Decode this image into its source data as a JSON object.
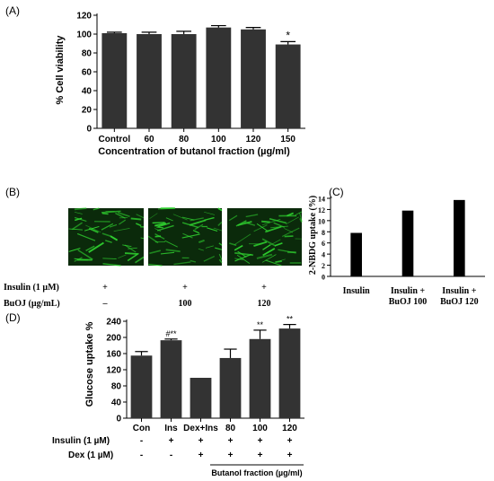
{
  "panels": {
    "a": "(A)",
    "b": "(B)",
    "c": "(C)",
    "d": "(D)"
  },
  "colors": {
    "bar": "#333333",
    "bar_black": "#000000",
    "axis": "#000000",
    "micro_bg": "#0b2a0b",
    "micro_fg": "#2fd12f"
  },
  "chart_data": [
    {
      "type": "bar",
      "panel": "A",
      "categories": [
        "Control",
        "60",
        "80",
        "100",
        "120",
        "150"
      ],
      "values": [
        101,
        100,
        100,
        107,
        105,
        89
      ],
      "errors": [
        1,
        2,
        3,
        2,
        2,
        3
      ],
      "annotations": [
        "",
        "",
        "",
        "",
        "",
        "*"
      ],
      "ylabel": "% Cell viability",
      "xlabel": "Concentration of butanol fraction (µg/ml)",
      "ylim": [
        0,
        120
      ],
      "yticks": [
        0,
        20,
        40,
        60,
        80,
        100,
        120
      ]
    },
    {
      "type": "bar",
      "panel": "C",
      "categories": [
        "Insulin",
        "Insulin + BuOJ 100",
        "Insulin + BuOJ 120"
      ],
      "category_lines": [
        [
          "Insulin"
        ],
        [
          "Insulin +",
          "BuOJ 100"
        ],
        [
          "Insulin +",
          "BuOJ 120"
        ]
      ],
      "values": [
        7.8,
        11.8,
        13.7
      ],
      "ylabel": "2-NBDG uptake (%)",
      "ylim": [
        0,
        14
      ],
      "yticks": [
        0,
        2,
        4,
        6,
        8,
        10,
        12,
        14
      ]
    },
    {
      "type": "bar",
      "panel": "D",
      "categories": [
        "Con",
        "Ins",
        "Dex+Ins",
        "80",
        "100",
        "120"
      ],
      "values": [
        155,
        193,
        100,
        149,
        196,
        222
      ],
      "errors": [
        10,
        3,
        0,
        22,
        22,
        10
      ],
      "annotations": [
        "",
        "#**",
        "",
        "",
        "**",
        "**"
      ],
      "ylabel": "Glucose uptake %",
      "ylim": [
        0,
        240
      ],
      "yticks": [
        0,
        40,
        80,
        120,
        160,
        200,
        240
      ]
    }
  ],
  "panel_b": {
    "rows": [
      {
        "label": "Insulin (1 µM)",
        "values": [
          "+",
          "+",
          "+"
        ]
      },
      {
        "label": "BuOJ (µg/mL)",
        "values": [
          "–",
          "100",
          "120"
        ]
      }
    ]
  },
  "panel_d_table": {
    "rows": [
      {
        "label": "Insulin (1 µM)",
        "values": [
          "-",
          "+",
          "+",
          "+",
          "+",
          "+"
        ]
      },
      {
        "label": "Dex (1 µM)",
        "values": [
          "-",
          "-",
          "+",
          "+",
          "+",
          "+"
        ]
      }
    ],
    "group_label": "Butanol fraction (µg/ml)"
  }
}
